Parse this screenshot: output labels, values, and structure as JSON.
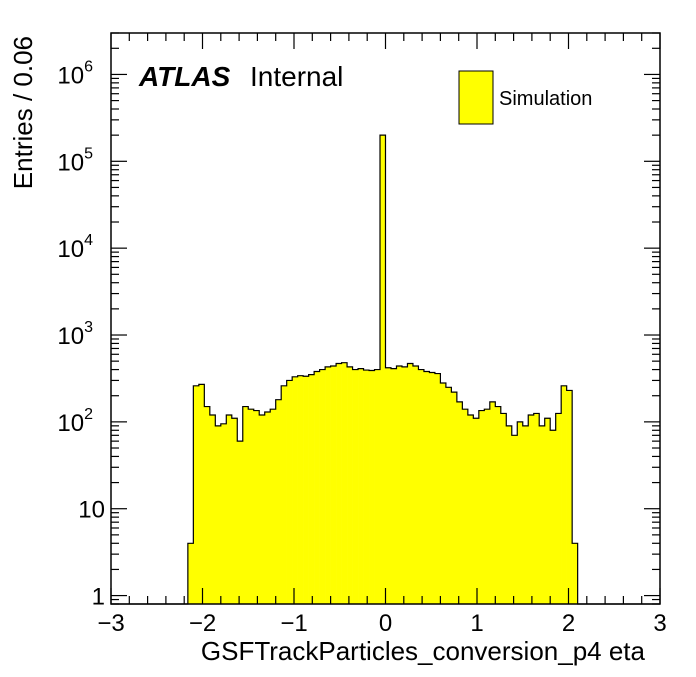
{
  "chart_data": {
    "type": "histogram",
    "x": {
      "label": "GSFTrackParticles_conversion_p4 eta",
      "range": [
        -3,
        3
      ],
      "ticks": [
        -3,
        -2,
        -1,
        0,
        1,
        2,
        3
      ],
      "tick_labels": [
        "−3",
        "−2",
        "−1",
        "0",
        "1",
        "2",
        "3"
      ]
    },
    "y": {
      "label": "Entries / 0.06",
      "scale": "log",
      "range": [
        0.8,
        3000000
      ],
      "ticks": [
        1,
        10,
        100,
        1000,
        10000,
        100000,
        1000000
      ],
      "tick_labels": [
        {
          "base": "1",
          "exp": ""
        },
        {
          "base": "10",
          "exp": ""
        },
        {
          "base": "10",
          "exp": "2"
        },
        {
          "base": "10",
          "exp": "3"
        },
        {
          "base": "10",
          "exp": "4"
        },
        {
          "base": "10",
          "exp": "5"
        },
        {
          "base": "10",
          "exp": "6"
        }
      ]
    },
    "bins": {
      "low": -3.0,
      "width": 0.06,
      "counts": [
        0,
        0,
        0,
        0,
        0,
        0,
        0,
        0,
        0,
        0,
        0,
        0,
        0,
        0,
        4,
        260,
        270,
        150,
        120,
        90,
        95,
        120,
        110,
        60,
        150,
        140,
        135,
        120,
        130,
        140,
        180,
        260,
        300,
        330,
        340,
        335,
        350,
        380,
        400,
        430,
        440,
        470,
        480,
        430,
        400,
        410,
        395,
        390,
        400,
        200000,
        420,
        410,
        440,
        430,
        470,
        440,
        400,
        380,
        370,
        360,
        280,
        250,
        220,
        170,
        140,
        120,
        110,
        135,
        140,
        170,
        150,
        125,
        90,
        70,
        100,
        90,
        120,
        125,
        90,
        110,
        80,
        125,
        260,
        230,
        4,
        0,
        0,
        0,
        0,
        0,
        0,
        0,
        0,
        0,
        0,
        0,
        0,
        0,
        0,
        0
      ]
    },
    "series": [
      {
        "name": "Simulation",
        "fill": "#ffff00",
        "stroke": "#000000"
      }
    ],
    "legend_position": "top-right",
    "grid": false
  },
  "annotations": {
    "atlas_label": "ATLAS",
    "status_label": "Internal"
  }
}
